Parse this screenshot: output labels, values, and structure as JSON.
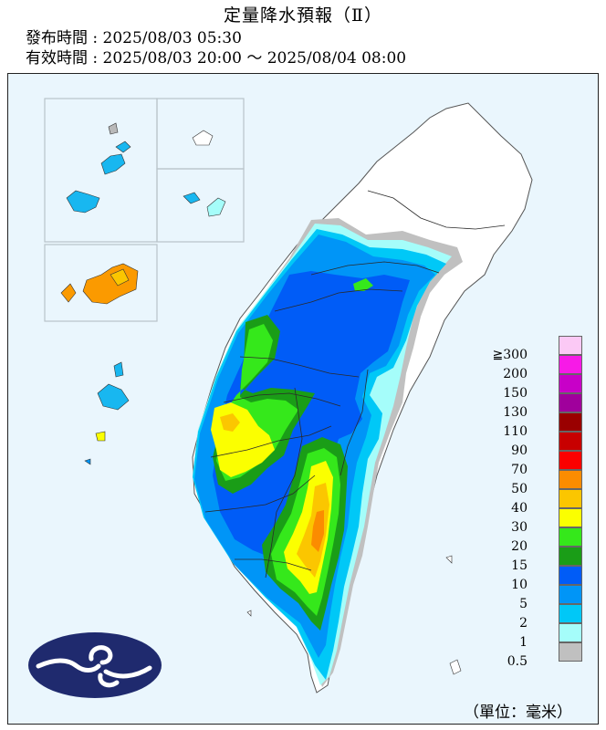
{
  "header": {
    "title": "定量降水預報（Ⅱ）",
    "issue_time": "發布時間 : 2025/08/03 05:30",
    "valid_time": "有效時間 : 2025/08/03 20:00 ～ 2025/08/04 08:00"
  },
  "legend": {
    "unit": "（單位：毫米）",
    "levels": [
      {
        "label": "≧300",
        "color": "#fbc9f5"
      },
      {
        "label": "200",
        "color": "#f71ae7"
      },
      {
        "label": "150",
        "color": "#c800c8"
      },
      {
        "label": "130",
        "color": "#a0009c"
      },
      {
        "label": "110",
        "color": "#9a0000"
      },
      {
        "label": "90",
        "color": "#c80000"
      },
      {
        "label": "70",
        "color": "#fb0000"
      },
      {
        "label": "50",
        "color": "#fb8c00"
      },
      {
        "label": "40",
        "color": "#fbc600"
      },
      {
        "label": "30",
        "color": "#fbff00"
      },
      {
        "label": "20",
        "color": "#35e81b"
      },
      {
        "label": "15",
        "color": "#1a9d17"
      },
      {
        "label": "10",
        "color": "#005cf7"
      },
      {
        "label": "5",
        "color": "#0095f7"
      },
      {
        "label": "2",
        "color": "#00c8f7"
      },
      {
        "label": "1",
        "color": "#a5fdfa"
      },
      {
        "label": "0.5",
        "color": "#c0c0c0"
      }
    ]
  },
  "logo": {
    "icon": "cloud-emblem-icon",
    "color": "#1f2a6e"
  }
}
